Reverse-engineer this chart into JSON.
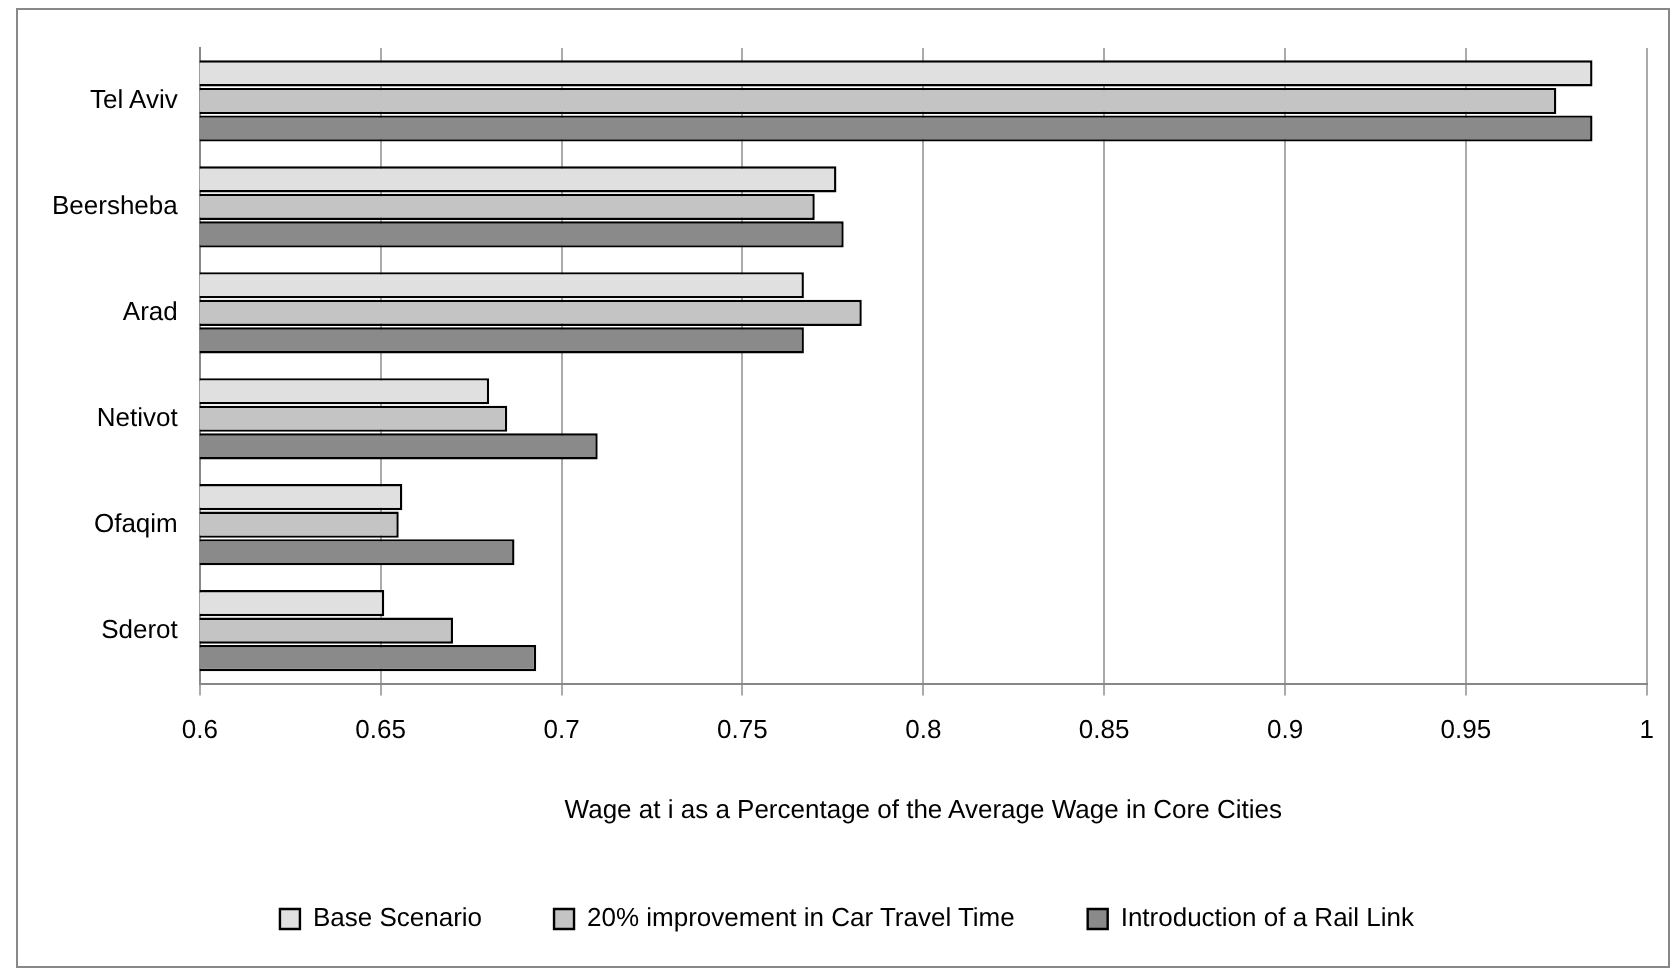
{
  "chart_data": {
    "type": "bar",
    "orientation": "horizontal",
    "xlabel": "Wage at i as a Percentage of the Average Wage in Core Cities",
    "categories": [
      "Tel Aviv",
      "Beersheba",
      "Arad",
      "Netivot",
      "Ofaqim",
      "Sderot"
    ],
    "series": [
      {
        "name": "Base Scenario",
        "color": "#e0e0e0",
        "values": [
          0.985,
          0.776,
          0.767,
          0.68,
          0.656,
          0.651
        ]
      },
      {
        "name": "20% improvement in Car Travel Time",
        "color": "#c4c4c4",
        "values": [
          0.975,
          0.77,
          0.783,
          0.685,
          0.655,
          0.67
        ]
      },
      {
        "name": "Introduction of a Rail Link",
        "color": "#8a8a8a",
        "values": [
          0.985,
          0.778,
          0.767,
          0.71,
          0.687,
          0.693
        ]
      }
    ],
    "xlim": [
      0.6,
      1
    ],
    "xticks": [
      0.6,
      0.65,
      0.7,
      0.75,
      0.8,
      0.85,
      0.9,
      0.95,
      1
    ],
    "grid": "x",
    "legend": "bottom"
  }
}
